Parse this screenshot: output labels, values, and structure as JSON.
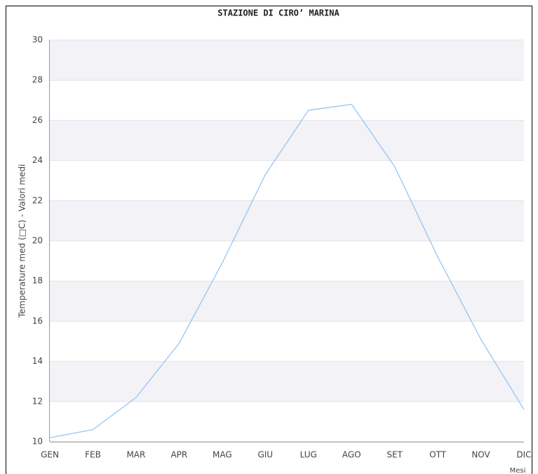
{
  "chart_data": {
    "type": "line",
    "title": "STAZIONE DI CIRO’ MARINA",
    "y_label": "Temperature med (□C) - Valori medi",
    "x_label": "Mesi",
    "categories": [
      "GEN",
      "FEB",
      "MAR",
      "APR",
      "MAG",
      "GIU",
      "LUG",
      "AGO",
      "SET",
      "OTT",
      "NOV",
      "DIC"
    ],
    "series": [
      {
        "color": "#8fc1f2",
        "values": [
          10.2,
          10.6,
          12.2,
          14.9,
          18.9,
          23.3,
          26.5,
          26.8,
          23.7,
          19.2,
          15.1,
          11.6
        ]
      }
    ],
    "ylim": [
      10,
      30
    ],
    "yticks": [
      10,
      12,
      14,
      16,
      18,
      20,
      22,
      24,
      26,
      28,
      30
    ],
    "grid": true
  }
}
